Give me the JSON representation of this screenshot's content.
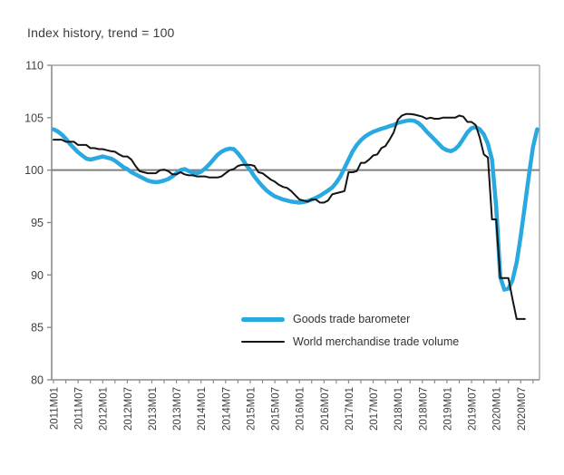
{
  "title": "Index history, trend = 100",
  "legend": {
    "items": [
      {
        "label": "Goods trade barometer",
        "color": "#29a9e0",
        "sample_thickness": 5
      },
      {
        "label": "World merchandise trade volume",
        "color": "#141414",
        "sample_thickness": 2
      }
    ]
  },
  "colors": {
    "plot_border": "#a6a6a6",
    "axis": "#8c8c8c",
    "tick": "#8c8c8c",
    "reference_line": "#7f7f7f",
    "tick_text": "#3f3f3f"
  },
  "chart_data": {
    "type": "line",
    "title": "Index history, trend = 100",
    "xlabel": "",
    "ylabel": "",
    "x_start": "2011M01",
    "x_frequency": "monthly",
    "ylim": [
      80,
      110
    ],
    "y_ticks": [
      80,
      85,
      90,
      95,
      100,
      105,
      110
    ],
    "x_tick_labels": [
      "2011M01",
      "2011M07",
      "2012M01",
      "2012M07",
      "2013M01",
      "2013M07",
      "2014M01",
      "2014M07",
      "2015M01",
      "2015M07",
      "2016M01",
      "2016M07",
      "2017M01",
      "2017M07",
      "2018M01",
      "2018M07",
      "2019M01",
      "2019M07",
      "2020M01",
      "2020M07"
    ],
    "x_tick_interval_months": 6,
    "minor_tick_interval_months": 3,
    "grid": false,
    "legend_position": "inside-bottom-center",
    "reference_line": {
      "value": 100
    },
    "series": [
      {
        "name": "Goods trade barometer",
        "color": "#29a9e0",
        "width": 4.5,
        "values": [
          103.9,
          103.7,
          103.4,
          103.0,
          102.5,
          102.1,
          101.7,
          101.4,
          101.1,
          101.0,
          101.1,
          101.2,
          101.3,
          101.2,
          101.1,
          100.9,
          100.6,
          100.3,
          100.1,
          99.8,
          99.6,
          99.4,
          99.2,
          99.0,
          98.9,
          98.85,
          98.9,
          99.0,
          99.15,
          99.4,
          99.7,
          100.0,
          100.1,
          99.9,
          99.75,
          99.7,
          99.85,
          100.15,
          100.55,
          101.0,
          101.45,
          101.75,
          101.95,
          102.05,
          102.0,
          101.6,
          101.1,
          100.5,
          100.0,
          99.4,
          98.9,
          98.45,
          98.05,
          97.75,
          97.5,
          97.35,
          97.2,
          97.1,
          97.0,
          96.95,
          96.9,
          96.95,
          97.05,
          97.2,
          97.35,
          97.55,
          97.8,
          98.05,
          98.35,
          98.8,
          99.4,
          100.2,
          101.0,
          101.8,
          102.4,
          102.85,
          103.2,
          103.45,
          103.65,
          103.8,
          103.95,
          104.05,
          104.2,
          104.3,
          104.5,
          104.6,
          104.7,
          104.75,
          104.7,
          104.5,
          104.15,
          103.7,
          103.3,
          102.9,
          102.5,
          102.1,
          101.9,
          101.8,
          102.0,
          102.4,
          103.0,
          103.6,
          104.0,
          104.1,
          103.9,
          103.4,
          102.5,
          101.0,
          96.5,
          89.8,
          88.6,
          88.7,
          89.5,
          91.2,
          93.7,
          96.6,
          99.5,
          102.2,
          103.9
        ]
      },
      {
        "name": "World merchandise trade volume",
        "color": "#141414",
        "width": 2,
        "values": [
          102.9,
          102.9,
          102.9,
          102.7,
          102.7,
          102.7,
          102.4,
          102.4,
          102.4,
          102.1,
          102.1,
          102.0,
          102.0,
          101.9,
          101.8,
          101.75,
          101.5,
          101.3,
          101.3,
          101.0,
          100.4,
          99.9,
          99.8,
          99.7,
          99.7,
          99.7,
          100.0,
          100.05,
          99.9,
          99.6,
          99.6,
          99.8,
          99.6,
          99.5,
          99.5,
          99.4,
          99.4,
          99.4,
          99.3,
          99.3,
          99.3,
          99.4,
          99.7,
          100.0,
          100.1,
          100.4,
          100.5,
          100.5,
          100.5,
          100.4,
          99.8,
          99.7,
          99.4,
          99.1,
          98.9,
          98.6,
          98.4,
          98.3,
          98.0,
          97.6,
          97.2,
          97.1,
          97.0,
          97.2,
          97.2,
          96.9,
          96.9,
          97.1,
          97.7,
          97.8,
          97.9,
          98.0,
          99.8,
          99.8,
          99.9,
          100.7,
          100.7,
          101.0,
          101.4,
          101.5,
          102.1,
          102.3,
          102.9,
          103.6,
          104.8,
          105.2,
          105.35,
          105.35,
          105.3,
          105.2,
          105.1,
          104.9,
          105.0,
          104.9,
          104.9,
          105.0,
          105.0,
          105.0,
          105.0,
          105.2,
          105.1,
          104.6,
          104.6,
          104.3,
          103.1,
          101.5,
          101.2,
          95.3,
          95.3,
          89.7,
          89.7,
          89.7,
          87.7,
          85.8,
          85.8,
          85.8
        ]
      }
    ]
  }
}
